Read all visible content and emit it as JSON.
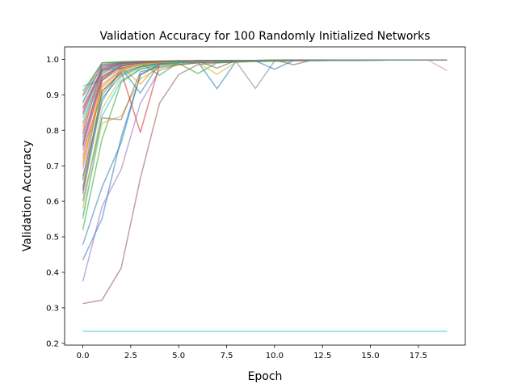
{
  "chart_data": {
    "type": "line",
    "title": "Validation Accuracy for 100 Randomly Initialized Networks",
    "xlabel": "Epoch",
    "ylabel": "Validation Accuracy",
    "xlim": [
      -0.95,
      19.95
    ],
    "ylim": [
      0.195,
      1.035
    ],
    "x_ticks": [
      0,
      2.5,
      5,
      7.5,
      10,
      12.5,
      15,
      17.5
    ],
    "x_tick_labels": [
      "0.0",
      "2.5",
      "5.0",
      "7.5",
      "10.0",
      "12.5",
      "15.0",
      "17.5"
    ],
    "y_ticks": [
      0.2,
      0.3,
      0.4,
      0.5,
      0.6,
      0.7,
      0.8,
      0.9,
      1.0
    ],
    "y_tick_labels": [
      "0.2",
      "0.3",
      "0.4",
      "0.5",
      "0.6",
      "0.7",
      "0.8",
      "0.9",
      "1.0"
    ],
    "grid": false,
    "legend": "none",
    "x": [
      0,
      1,
      2,
      3,
      4,
      5,
      6,
      7,
      8,
      9,
      10,
      11,
      12,
      13,
      14,
      15,
      16,
      17,
      18,
      19
    ],
    "series": [
      {
        "color": "#17becf",
        "values": [
          0.234,
          0.234,
          0.234,
          0.234,
          0.234,
          0.234,
          0.234,
          0.234,
          0.234,
          0.234,
          0.234,
          0.234,
          0.234,
          0.234,
          0.234,
          0.234,
          0.234,
          0.234,
          0.234,
          0.234
        ]
      },
      {
        "color": "#8c564b",
        "values": [
          0.312,
          0.322,
          0.412,
          0.665,
          0.876,
          0.957,
          0.985,
          0.99,
          0.992,
          0.994,
          0.995,
          0.996,
          0.996,
          0.997,
          0.997,
          0.997,
          0.998,
          0.998,
          0.998,
          0.998
        ]
      },
      {
        "color": "#9467bd",
        "values": [
          0.374,
          0.585,
          0.69,
          0.876,
          0.969,
          0.985,
          0.99,
          0.992,
          0.994,
          0.995,
          0.996,
          0.996,
          0.997,
          0.997,
          0.997,
          0.998,
          0.998,
          0.998,
          0.998,
          0.998
        ]
      },
      {
        "color": "#1f77b4",
        "values": [
          0.435,
          0.551,
          0.78,
          0.955,
          0.985,
          0.99,
          0.993,
          0.994,
          0.995,
          0.996,
          0.996,
          0.997,
          0.997,
          0.997,
          0.998,
          0.998,
          0.998,
          0.998,
          0.998,
          0.998
        ]
      },
      {
        "color": "#1f77b4",
        "values": [
          0.478,
          0.64,
          0.765,
          0.958,
          0.985,
          0.99,
          0.993,
          0.917,
          0.995,
          0.996,
          0.996,
          0.997,
          0.997,
          0.997,
          0.998,
          0.998,
          0.998,
          0.998,
          0.998,
          0.998
        ]
      },
      {
        "color": "#2ca02c",
        "values": [
          0.52,
          0.775,
          0.935,
          0.972,
          0.983,
          0.988,
          0.96,
          0.99,
          0.993,
          0.994,
          0.995,
          0.996,
          0.997,
          0.997,
          0.997,
          0.998,
          0.998,
          0.998,
          0.998,
          0.998
        ]
      },
      {
        "color": "#bcbd22",
        "values": [
          0.56,
          0.82,
          0.84,
          0.945,
          0.975,
          0.985,
          0.99,
          0.958,
          0.992,
          0.994,
          0.995,
          0.996,
          0.996,
          0.997,
          0.997,
          0.997,
          0.998,
          0.998,
          0.998,
          0.998
        ]
      },
      {
        "color": "#8c564b",
        "values": [
          0.6,
          0.835,
          0.83,
          0.965,
          0.978,
          0.985,
          0.99,
          0.992,
          0.994,
          0.995,
          0.996,
          0.996,
          0.997,
          0.997,
          0.997,
          0.998,
          0.998,
          0.998,
          0.998,
          0.998
        ]
      },
      {
        "color": "#d62728",
        "values": [
          0.63,
          0.91,
          0.965,
          0.794,
          0.985,
          0.99,
          0.993,
          0.994,
          0.995,
          0.996,
          0.996,
          0.997,
          0.997,
          0.997,
          0.998,
          0.998,
          0.998,
          0.998,
          0.998,
          0.998
        ]
      },
      {
        "color": "#7f7f7f",
        "values": [
          0.67,
          0.88,
          0.975,
          0.985,
          0.99,
          0.993,
          0.994,
          0.995,
          0.993,
          0.918,
          0.995,
          0.996,
          0.996,
          0.997,
          0.997,
          0.998,
          0.998,
          0.998,
          0.998,
          0.998
        ]
      },
      {
        "color": "#ff7f0e",
        "values": [
          0.7,
          0.95,
          0.98,
          0.93,
          0.988,
          0.99,
          0.993,
          0.994,
          0.995,
          0.996,
          0.996,
          0.997,
          0.997,
          0.997,
          0.998,
          0.998,
          0.998,
          0.998,
          0.998,
          0.998
        ]
      },
      {
        "color": "#e377c2",
        "values": [
          0.73,
          0.96,
          0.985,
          0.99,
          0.993,
          0.994,
          0.995,
          0.996,
          0.996,
          0.997,
          0.997,
          0.997,
          0.998,
          0.998,
          0.998,
          0.998,
          0.998,
          0.998,
          0.998,
          0.968
        ]
      },
      {
        "color": "#1f77b4",
        "values": [
          0.76,
          0.97,
          0.975,
          0.905,
          0.988,
          0.99,
          0.993,
          0.994,
          0.995,
          0.996,
          0.972,
          0.997,
          0.997,
          0.997,
          0.998,
          0.998,
          0.998,
          0.998,
          0.998,
          0.998
        ]
      },
      {
        "color": "#d62728",
        "values": [
          0.79,
          0.98,
          0.99,
          0.993,
          0.994,
          0.995,
          0.996,
          0.996,
          0.997,
          0.997,
          0.997,
          0.998,
          0.998,
          0.998,
          0.998,
          0.998,
          0.998,
          0.998,
          0.998,
          0.998
        ]
      },
      {
        "color": "#2ca02c",
        "values": [
          0.82,
          0.965,
          0.985,
          0.99,
          0.955,
          0.992,
          0.994,
          0.995,
          0.996,
          0.996,
          0.997,
          0.997,
          0.997,
          0.998,
          0.998,
          0.998,
          0.998,
          0.998,
          0.998,
          0.998
        ]
      },
      {
        "color": "#9467bd",
        "values": [
          0.85,
          0.975,
          0.99,
          0.993,
          0.994,
          0.995,
          0.996,
          0.996,
          0.997,
          0.997,
          0.997,
          0.998,
          0.998,
          0.998,
          0.998,
          0.998,
          0.998,
          0.998,
          0.998,
          0.998
        ]
      },
      {
        "color": "#bcbd22",
        "values": [
          0.875,
          0.985,
          0.992,
          0.994,
          0.995,
          0.996,
          0.996,
          0.997,
          0.997,
          0.997,
          0.998,
          0.998,
          0.998,
          0.998,
          0.998,
          0.998,
          0.998,
          0.998,
          0.998,
          0.998
        ]
      },
      {
        "color": "#8c564b",
        "values": [
          0.9,
          0.99,
          0.993,
          0.994,
          0.995,
          0.996,
          0.996,
          0.975,
          0.997,
          0.997,
          0.998,
          0.985,
          0.998,
          0.998,
          0.998,
          0.998,
          0.998,
          0.998,
          0.998,
          0.998
        ]
      },
      {
        "color": "#17becf",
        "values": [
          0.925,
          0.94,
          0.985,
          0.99,
          0.993,
          0.994,
          0.995,
          0.996,
          0.996,
          0.997,
          0.997,
          0.997,
          0.998,
          0.998,
          0.998,
          0.998,
          0.998,
          0.998,
          0.998,
          0.998
        ]
      },
      {
        "color": "#7f7f7f",
        "values": [
          0.745,
          0.9,
          0.965,
          0.98,
          0.988,
          0.99,
          0.993,
          0.994,
          0.995,
          0.996,
          0.996,
          0.997,
          0.997,
          0.997,
          0.998,
          0.998,
          0.998,
          0.998,
          0.998,
          0.998
        ]
      },
      {
        "color": "#ff7f0e",
        "values": [
          0.81,
          0.955,
          0.98,
          0.99,
          0.993,
          0.994,
          0.995,
          0.996,
          0.996,
          0.997,
          0.997,
          0.997,
          0.998,
          0.998,
          0.998,
          0.998,
          0.998,
          0.998,
          0.998,
          0.998
        ]
      },
      {
        "color": "#e377c2",
        "values": [
          0.69,
          0.93,
          0.97,
          0.985,
          0.99,
          0.993,
          0.994,
          0.995,
          0.996,
          0.996,
          0.997,
          0.997,
          0.997,
          0.998,
          0.998,
          0.998,
          0.998,
          0.998,
          0.998,
          0.998
        ]
      },
      {
        "color": "#1f77b4",
        "values": [
          0.88,
          0.985,
          0.99,
          0.993,
          0.994,
          0.995,
          0.996,
          0.996,
          0.997,
          0.997,
          0.997,
          0.998,
          0.998,
          0.998,
          0.998,
          0.998,
          0.998,
          0.998,
          0.998,
          0.998
        ]
      },
      {
        "color": "#2ca02c",
        "values": [
          0.64,
          0.91,
          0.96,
          0.98,
          0.988,
          0.99,
          0.993,
          0.994,
          0.995,
          0.996,
          0.996,
          0.997,
          0.997,
          0.997,
          0.998,
          0.998,
          0.998,
          0.998,
          0.998,
          0.998
        ]
      },
      {
        "color": "#d62728",
        "values": [
          0.86,
          0.97,
          0.988,
          0.992,
          0.994,
          0.995,
          0.996,
          0.996,
          0.997,
          0.997,
          0.997,
          0.998,
          0.998,
          0.998,
          0.998,
          0.998,
          0.998,
          0.998,
          0.998,
          0.998
        ]
      },
      {
        "color": "#9467bd",
        "values": [
          0.78,
          0.95,
          0.982,
          0.99,
          0.993,
          0.994,
          0.995,
          0.996,
          0.996,
          0.997,
          0.997,
          0.997,
          0.998,
          0.998,
          0.998,
          0.998,
          0.998,
          0.998,
          0.998,
          0.998
        ]
      },
      {
        "color": "#bcbd22",
        "values": [
          0.58,
          0.86,
          0.95,
          0.975,
          0.985,
          0.99,
          0.993,
          0.994,
          0.995,
          0.996,
          0.996,
          0.997,
          0.997,
          0.997,
          0.998,
          0.998,
          0.998,
          0.998,
          0.998,
          0.998
        ]
      },
      {
        "color": "#17becf",
        "values": [
          0.835,
          0.96,
          0.986,
          0.991,
          0.994,
          0.995,
          0.996,
          0.996,
          0.997,
          0.997,
          0.997,
          0.998,
          0.998,
          0.998,
          0.998,
          0.998,
          0.998,
          0.998,
          0.998,
          0.998
        ]
      },
      {
        "color": "#8c564b",
        "values": [
          0.66,
          0.94,
          0.975,
          0.987,
          0.991,
          0.993,
          0.994,
          0.995,
          0.996,
          0.996,
          0.997,
          0.997,
          0.997,
          0.998,
          0.998,
          0.998,
          0.998,
          0.998,
          0.998,
          0.998
        ]
      },
      {
        "color": "#7f7f7f",
        "values": [
          0.895,
          0.98,
          0.99,
          0.993,
          0.994,
          0.995,
          0.996,
          0.996,
          0.997,
          0.997,
          0.997,
          0.998,
          0.998,
          0.998,
          0.998,
          0.998,
          0.998,
          0.998,
          0.998,
          0.998
        ]
      },
      {
        "color": "#ff7f0e",
        "values": [
          0.72,
          0.92,
          0.97,
          0.984,
          0.99,
          0.993,
          0.994,
          0.995,
          0.996,
          0.996,
          0.997,
          0.997,
          0.997,
          0.998,
          0.998,
          0.998,
          0.998,
          0.998,
          0.998,
          0.998
        ]
      },
      {
        "color": "#2ca02c",
        "values": [
          0.91,
          0.99,
          0.993,
          0.994,
          0.995,
          0.996,
          0.996,
          0.997,
          0.997,
          0.997,
          0.998,
          0.998,
          0.998,
          0.998,
          0.998,
          0.998,
          0.998,
          0.998,
          0.998,
          0.998
        ]
      },
      {
        "color": "#e377c2",
        "values": [
          0.8,
          0.968,
          0.987,
          0.992,
          0.994,
          0.995,
          0.996,
          0.996,
          0.997,
          0.997,
          0.997,
          0.998,
          0.998,
          0.998,
          0.998,
          0.998,
          0.998,
          0.998,
          0.998,
          0.998
        ]
      },
      {
        "color": "#1f77b4",
        "values": [
          0.62,
          0.89,
          0.955,
          0.978,
          0.988,
          0.991,
          0.993,
          0.994,
          0.995,
          0.996,
          0.996,
          0.997,
          0.997,
          0.997,
          0.998,
          0.998,
          0.998,
          0.998,
          0.998,
          0.998
        ]
      },
      {
        "color": "#d62728",
        "values": [
          0.755,
          0.945,
          0.98,
          0.99,
          0.993,
          0.994,
          0.995,
          0.996,
          0.996,
          0.997,
          0.997,
          0.997,
          0.998,
          0.998,
          0.998,
          0.998,
          0.998,
          0.998,
          0.998,
          0.998
        ]
      },
      {
        "color": "#9467bd",
        "values": [
          0.865,
          0.975,
          0.989,
          0.993,
          0.994,
          0.995,
          0.996,
          0.996,
          0.997,
          0.997,
          0.997,
          0.998,
          0.998,
          0.998,
          0.998,
          0.998,
          0.998,
          0.998,
          0.998,
          0.998
        ]
      },
      {
        "color": "#bcbd22",
        "values": [
          0.71,
          0.925,
          0.972,
          0.986,
          0.99,
          0.993,
          0.994,
          0.995,
          0.996,
          0.996,
          0.997,
          0.997,
          0.997,
          0.998,
          0.998,
          0.998,
          0.998,
          0.998,
          0.998,
          0.998
        ]
      },
      {
        "color": "#8c564b",
        "values": [
          0.845,
          0.97,
          0.988,
          0.992,
          0.994,
          0.995,
          0.996,
          0.996,
          0.997,
          0.997,
          0.997,
          0.998,
          0.998,
          0.998,
          0.998,
          0.998,
          0.998,
          0.998,
          0.998,
          0.998
        ]
      },
      {
        "color": "#17becf",
        "values": [
          0.55,
          0.84,
          0.94,
          0.972,
          0.985,
          0.99,
          0.993,
          0.994,
          0.995,
          0.996,
          0.996,
          0.997,
          0.997,
          0.997,
          0.998,
          0.998,
          0.998,
          0.998,
          0.998,
          0.998
        ]
      },
      {
        "color": "#7f7f7f",
        "values": [
          0.77,
          0.95,
          0.983,
          0.99,
          0.993,
          0.994,
          0.995,
          0.996,
          0.996,
          0.997,
          0.997,
          0.997,
          0.998,
          0.998,
          0.998,
          0.998,
          0.998,
          0.998,
          0.998,
          0.998
        ]
      }
    ]
  }
}
